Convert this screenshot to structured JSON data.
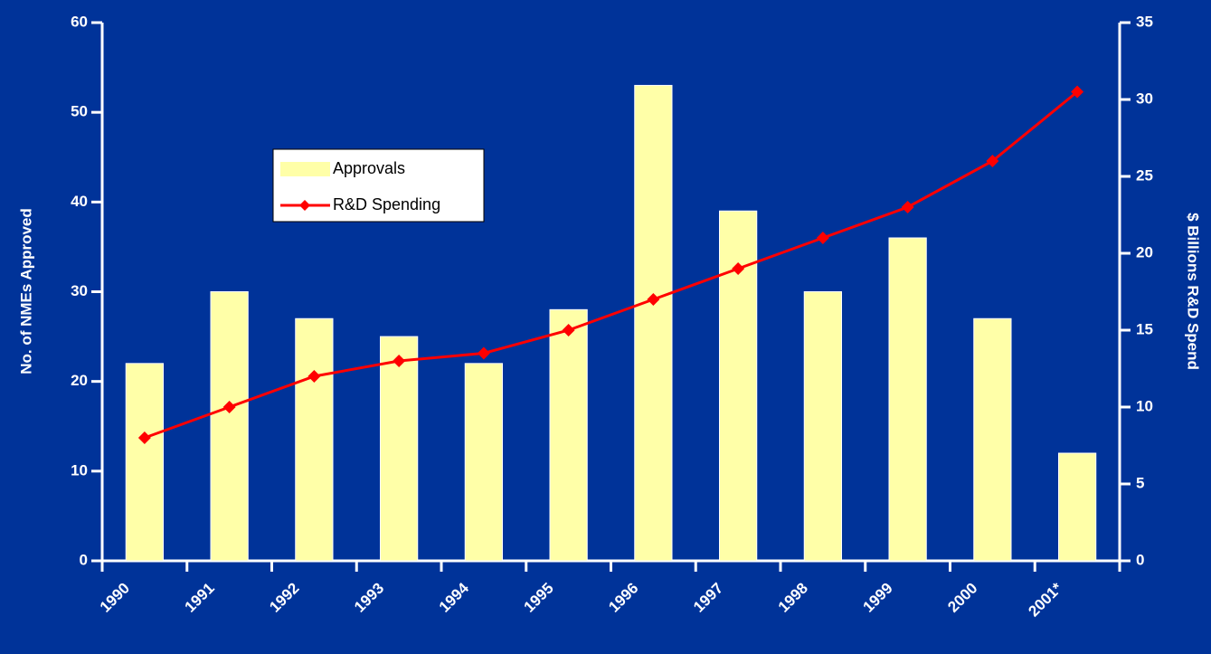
{
  "chart_data": {
    "type": "bar",
    "categories": [
      "1990",
      "1991",
      "1992",
      "1993",
      "1994",
      "1995",
      "1996",
      "1997",
      "1998",
      "1999",
      "2000",
      "2001*"
    ],
    "series": [
      {
        "name": "Approvals",
        "type": "bar",
        "color": "#ffffa8",
        "values": [
          22,
          30,
          27,
          25,
          22,
          28,
          53,
          39,
          30,
          36,
          27,
          12
        ]
      },
      {
        "name": "R&D Spending",
        "type": "line",
        "axis": "y2",
        "color": "#ff0000",
        "values": [
          8,
          10,
          12,
          13,
          13.5,
          15,
          17,
          19,
          21,
          23,
          26,
          30.5
        ]
      }
    ],
    "ylabel": "No. of NMEs Approved",
    "y2label": "$ Billions R&D Spend",
    "ylim": [
      0,
      60
    ],
    "yticks": [
      0,
      10,
      20,
      30,
      40,
      50,
      60
    ],
    "y2lim": [
      0,
      35
    ],
    "y2ticks": [
      0,
      5,
      10,
      15,
      20,
      25,
      30,
      35
    ],
    "grid": false
  }
}
